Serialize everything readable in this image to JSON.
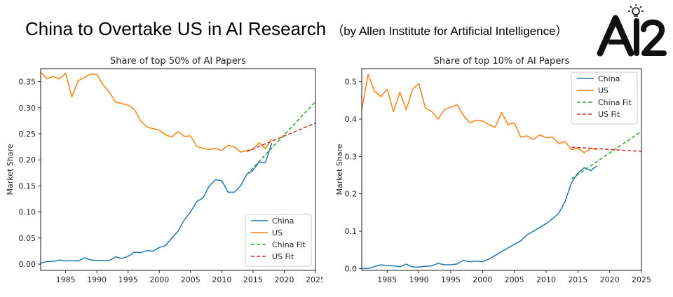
{
  "page": {
    "title": "China to Overtake US in AI Research",
    "subtitle": "（by Allen Institute for Artificial Intelligence）",
    "logo_text": "AI2"
  },
  "colors": {
    "china": "#1f77b4",
    "us": "#ff7f0e",
    "china_fit": "#2ca02c",
    "us_fit": "#d62728"
  },
  "chart_data": [
    {
      "type": "line",
      "title": "Share of top 50% of AI Papers",
      "xlabel": "",
      "ylabel": "Market Share",
      "xlim": [
        1981,
        2025
      ],
      "ylim": [
        -0.012,
        0.375
      ],
      "xticks": [
        1985,
        1990,
        1995,
        2000,
        2005,
        2010,
        2015,
        2020,
        2025
      ],
      "yticks": [
        0.0,
        0.05,
        0.1,
        0.15,
        0.2,
        0.25,
        0.3,
        0.35
      ],
      "ytick_labels": [
        "0.00",
        "0.05",
        "0.10",
        "0.15",
        "0.20",
        "0.25",
        "0.30",
        "0.35"
      ],
      "legend": {
        "position": "lower-right",
        "entries": [
          "China",
          "US",
          "China Fit",
          "US Fit"
        ]
      },
      "series": [
        {
          "name": "China",
          "style": "solid",
          "x": [
            1981,
            1982,
            1983,
            1984,
            1985,
            1986,
            1987,
            1988,
            1989,
            1990,
            1991,
            1992,
            1993,
            1994,
            1995,
            1996,
            1997,
            1998,
            1999,
            2000,
            2001,
            2002,
            2003,
            2004,
            2005,
            2006,
            2007,
            2008,
            2009,
            2010,
            2011,
            2012,
            2013,
            2014,
            2015,
            2016,
            2017,
            2018
          ],
          "y": [
            0.002,
            0.005,
            0.005,
            0.008,
            0.006,
            0.007,
            0.006,
            0.012,
            0.008,
            0.007,
            0.007,
            0.007,
            0.014,
            0.011,
            0.015,
            0.023,
            0.022,
            0.026,
            0.025,
            0.032,
            0.036,
            0.05,
            0.063,
            0.085,
            0.1,
            0.12,
            0.127,
            0.15,
            0.162,
            0.16,
            0.138,
            0.138,
            0.15,
            0.172,
            0.18,
            0.196,
            0.195,
            0.232
          ]
        },
        {
          "name": "US",
          "style": "solid",
          "x": [
            1981,
            1982,
            1983,
            1984,
            1985,
            1986,
            1987,
            1988,
            1989,
            1990,
            1991,
            1992,
            1993,
            1994,
            1995,
            1996,
            1997,
            1998,
            1999,
            2000,
            2001,
            2002,
            2003,
            2004,
            2005,
            2006,
            2007,
            2008,
            2009,
            2010,
            2011,
            2012,
            2013,
            2014,
            2015,
            2016,
            2017,
            2018
          ],
          "y": [
            0.368,
            0.356,
            0.36,
            0.355,
            0.366,
            0.321,
            0.352,
            0.358,
            0.365,
            0.364,
            0.344,
            0.33,
            0.311,
            0.308,
            0.305,
            0.297,
            0.275,
            0.263,
            0.26,
            0.257,
            0.248,
            0.244,
            0.254,
            0.245,
            0.246,
            0.226,
            0.222,
            0.22,
            0.222,
            0.218,
            0.228,
            0.225,
            0.215,
            0.218,
            0.22,
            0.233,
            0.221,
            0.24
          ]
        },
        {
          "name": "China Fit",
          "style": "dashed",
          "x": [
            2014,
            2025.5
          ],
          "y": [
            0.172,
            0.318
          ]
        },
        {
          "name": "US Fit",
          "style": "dashed",
          "x": [
            2014,
            2025.5
          ],
          "y": [
            0.216,
            0.273
          ]
        }
      ]
    },
    {
      "type": "line",
      "title": "Share of top 10% of AI Papers",
      "xlabel": "",
      "ylabel": "Market Share",
      "xlim": [
        1981,
        2025
      ],
      "ylim": [
        -0.005,
        0.535
      ],
      "xticks": [
        1985,
        1990,
        1995,
        2000,
        2005,
        2010,
        2015,
        2020,
        2025
      ],
      "yticks": [
        0.0,
        0.1,
        0.2,
        0.3,
        0.4,
        0.5
      ],
      "ytick_labels": [
        "0.0",
        "0.1",
        "0.2",
        "0.3",
        "0.4",
        "0.5"
      ],
      "legend": {
        "position": "upper-right",
        "entries": [
          "China",
          "US",
          "China Fit",
          "US Fit"
        ]
      },
      "series": [
        {
          "name": "China",
          "style": "solid",
          "x": [
            1981,
            1982,
            1983,
            1984,
            1985,
            1986,
            1987,
            1988,
            1989,
            1990,
            1991,
            1992,
            1993,
            1994,
            1995,
            1996,
            1997,
            1998,
            1999,
            2000,
            2001,
            2002,
            2003,
            2004,
            2005,
            2006,
            2007,
            2008,
            2009,
            2010,
            2011,
            2012,
            2013,
            2014,
            2015,
            2016,
            2017,
            2018
          ],
          "y": [
            0.0,
            0.0,
            0.005,
            0.01,
            0.008,
            0.007,
            0.005,
            0.012,
            0.004,
            0.004,
            0.006,
            0.007,
            0.014,
            0.01,
            0.01,
            0.012,
            0.022,
            0.018,
            0.02,
            0.018,
            0.025,
            0.035,
            0.045,
            0.055,
            0.065,
            0.074,
            0.09,
            0.1,
            0.11,
            0.12,
            0.133,
            0.148,
            0.18,
            0.23,
            0.255,
            0.27,
            0.262,
            0.275
          ]
        },
        {
          "name": "US",
          "style": "solid",
          "x": [
            1981,
            1982,
            1983,
            1984,
            1985,
            1986,
            1987,
            1988,
            1989,
            1990,
            1991,
            1992,
            1993,
            1994,
            1995,
            1996,
            1997,
            1998,
            1999,
            2000,
            2001,
            2002,
            2003,
            2004,
            2005,
            2006,
            2007,
            2008,
            2009,
            2010,
            2011,
            2012,
            2013,
            2014,
            2015,
            2016,
            2017,
            2018
          ],
          "y": [
            0.425,
            0.52,
            0.475,
            0.46,
            0.48,
            0.42,
            0.472,
            0.425,
            0.48,
            0.495,
            0.43,
            0.42,
            0.4,
            0.425,
            0.432,
            0.438,
            0.41,
            0.39,
            0.397,
            0.395,
            0.385,
            0.378,
            0.418,
            0.385,
            0.39,
            0.352,
            0.355,
            0.345,
            0.358,
            0.35,
            0.352,
            0.335,
            0.34,
            0.318,
            0.322,
            0.31,
            0.322,
            0.318
          ]
        },
        {
          "name": "China Fit",
          "style": "dashed",
          "x": [
            2014,
            2025.5
          ],
          "y": [
            0.24,
            0.373
          ]
        },
        {
          "name": "US Fit",
          "style": "dashed",
          "x": [
            2014,
            2025.5
          ],
          "y": [
            0.325,
            0.313
          ]
        }
      ]
    }
  ]
}
